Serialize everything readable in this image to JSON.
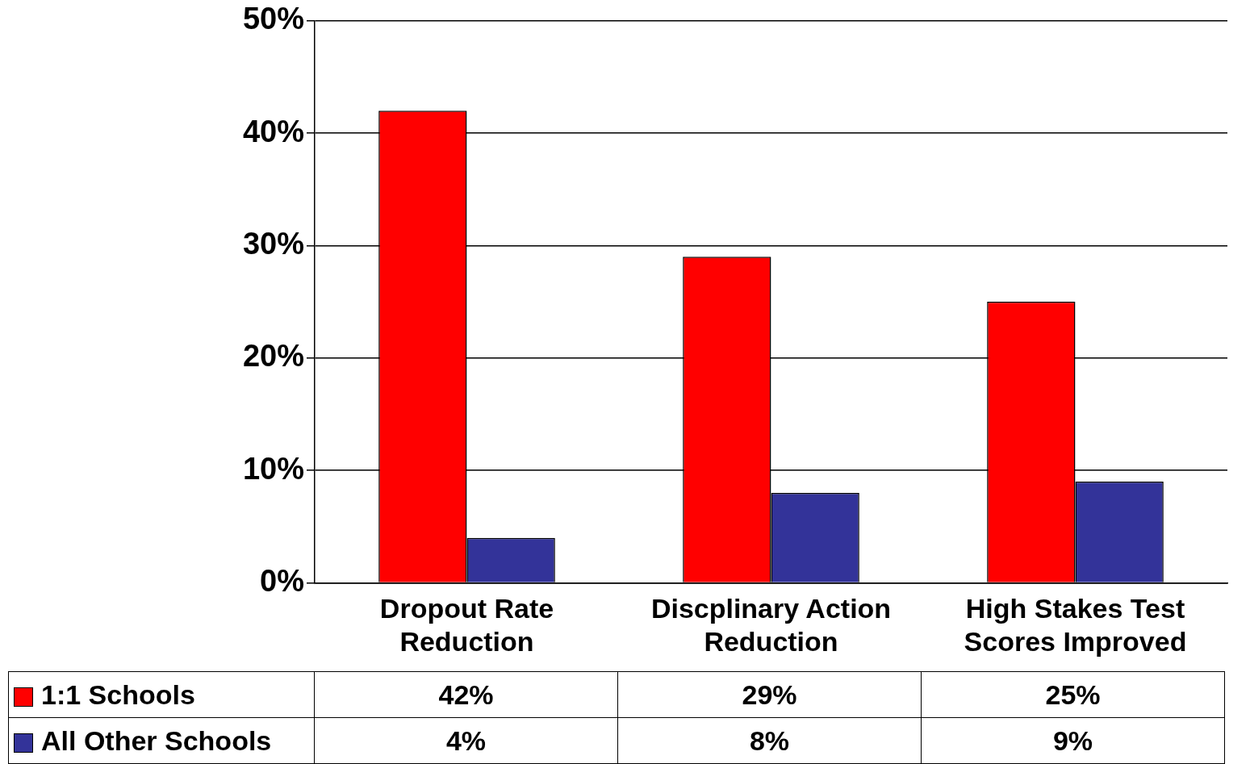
{
  "chart_data": {
    "type": "bar",
    "categories": [
      "Dropout Rate Reduction",
      "Discplinary Action Reduction",
      "High Stakes Test Scores Improved"
    ],
    "series": [
      {
        "name": "1:1 Schools",
        "color": "#ff0000",
        "values": [
          42,
          29,
          25
        ],
        "value_labels": [
          "42%",
          "29%",
          "25%"
        ]
      },
      {
        "name": "All Other Schools",
        "color": "#333399",
        "values": [
          4,
          8,
          9
        ],
        "value_labels": [
          "4%",
          "8%",
          "9%"
        ]
      }
    ],
    "ylim": [
      0,
      50
    ],
    "yticks": [
      {
        "value": 0,
        "label": "0%"
      },
      {
        "value": 10,
        "label": "10%"
      },
      {
        "value": 20,
        "label": "20%"
      },
      {
        "value": 30,
        "label": "30%"
      },
      {
        "value": 40,
        "label": "40%"
      },
      {
        "value": 50,
        "label": "50%"
      }
    ],
    "grid": "y",
    "legend": "bottom"
  }
}
